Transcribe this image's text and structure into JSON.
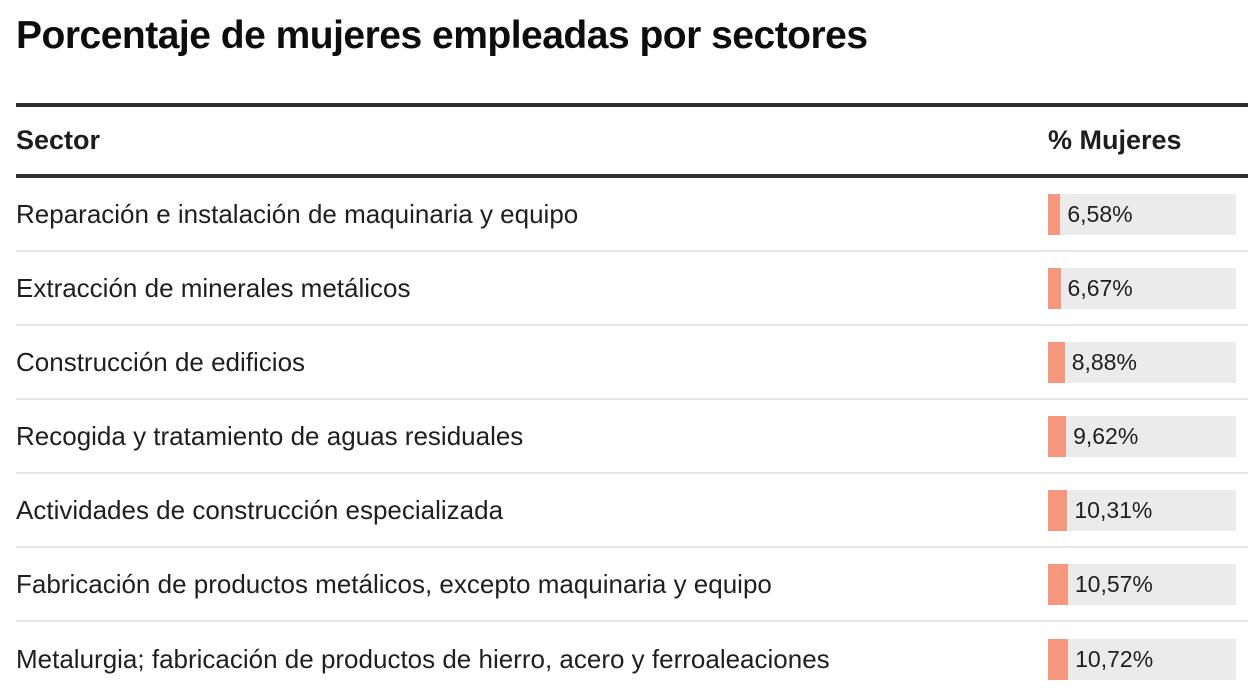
{
  "title": "Porcentaje de mujeres empleadas por sectores",
  "table": {
    "columns": {
      "sector": "Sector",
      "value": "% Mujeres"
    },
    "rows": [
      {
        "label": "Reparación e instalación de maquinaria y equipo",
        "value": 6.58,
        "value_label": "6,58%"
      },
      {
        "label": "Extracción de minerales metálicos",
        "value": 6.67,
        "value_label": "6,67%"
      },
      {
        "label": "Construcción de edificios",
        "value": 8.88,
        "value_label": "8,88%"
      },
      {
        "label": "Recogida y tratamiento de aguas residuales",
        "value": 9.62,
        "value_label": "9,62%"
      },
      {
        "label": "Actividades de construcción especializada",
        "value": 10.31,
        "value_label": "10,31%"
      },
      {
        "label": "Fabricación de productos metálicos, excepto maquinaria y equipo",
        "value": 10.57,
        "value_label": "10,57%"
      },
      {
        "label": "Metalurgia; fabricación de productos de hierro, acero y ferroaleaciones",
        "value": 10.72,
        "value_label": "10,72%"
      }
    ]
  },
  "colors": {
    "bar": "#f4977d",
    "track": "#ebebeb",
    "rule": "#2e2e2e",
    "divider": "#e6e6e6",
    "text": "#1d1d1d"
  },
  "chart_data": {
    "type": "bar",
    "orientation": "horizontal",
    "title": "Porcentaje de mujeres empleadas por sectores",
    "categories": [
      "Reparación e instalación de maquinaria y equipo",
      "Extracción de minerales metálicos",
      "Construcción de edificios",
      "Recogida y tratamiento de aguas residuales",
      "Actividades de construcción especializada",
      "Fabricación de productos metálicos, excepto maquinaria y equipo",
      "Metalurgia; fabricación de productos de hierro, acero y ferroaleaciones"
    ],
    "values": [
      6.58,
      6.67,
      8.88,
      9.62,
      10.31,
      10.57,
      10.72
    ],
    "value_labels": [
      "6,58%",
      "6,67%",
      "8,88%",
      "9,62%",
      "10,31%",
      "10,57%",
      "10,72%"
    ],
    "xlabel": "% Mujeres",
    "ylabel": "Sector",
    "xlim": [
      0,
      100
    ],
    "grid": false,
    "legend": false,
    "bar_color": "#f4977d"
  }
}
